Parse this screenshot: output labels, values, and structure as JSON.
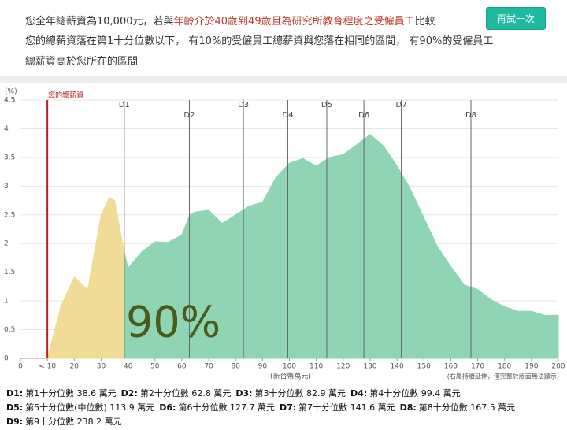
{
  "header": {
    "line1_start": "您全年總薪資為10,000元，若與",
    "line1_highlight": "年齡介於40歲到49歲且為研究所教育程度之受僱員工",
    "line1_end": "比較",
    "line2": "您的總薪資落在第1十分位數以下， 有10%的受僱員工總薪資與您落在相同的區間， 有90%的受僱員工",
    "line3": "總薪資高於您所在的區間",
    "button": "再試一次"
  },
  "chart_data": {
    "type": "area",
    "y_unit": "(%)",
    "x_label": "(新台幣萬元)",
    "note": "(右尾持續延伸，僅完整於版面無法顯示)",
    "annotation": "90%",
    "xlim": [
      0,
      200
    ],
    "xticks": [
      0,
      {
        "value": 10,
        "label": "< 10"
      },
      20,
      30,
      40,
      50,
      60,
      70,
      80,
      90,
      100,
      110,
      120,
      130,
      140,
      150,
      160,
      170,
      180,
      190,
      200
    ],
    "ylim": [
      0,
      4.5
    ],
    "yticks": [
      0,
      0.5,
      1,
      1.5,
      2,
      2.5,
      3,
      3.5,
      4,
      4.5
    ],
    "grid": true,
    "series": [
      {
        "color": "#f0dc96",
        "x": [
          10,
          15,
          20,
          25,
          30,
          33,
          35,
          38.6
        ],
        "values": [
          0,
          0.9,
          1.42,
          1.19,
          2.5,
          2.8,
          2.75,
          1.85
        ]
      },
      {
        "color": "#90d5b3",
        "x": [
          38.6,
          40,
          45,
          50,
          55,
          60,
          63,
          65,
          70,
          75,
          80,
          85,
          90,
          95,
          100,
          105,
          110,
          115,
          120,
          125,
          130,
          135,
          140,
          145,
          150,
          155,
          160,
          165,
          170,
          175,
          180,
          185,
          190,
          195,
          200
        ],
        "values": [
          1.85,
          1.57,
          1.85,
          2.03,
          2.02,
          2.15,
          2.5,
          2.55,
          2.58,
          2.35,
          2.5,
          2.65,
          2.72,
          3.15,
          3.4,
          3.48,
          3.35,
          3.5,
          3.55,
          3.72,
          3.9,
          3.7,
          3.35,
          2.95,
          2.45,
          1.95,
          1.6,
          1.28,
          1.2,
          1.02,
          0.9,
          0.82,
          0.82,
          0.75,
          0.75
        ]
      }
    ],
    "marker": {
      "label": "您的總薪資",
      "value": 10,
      "color": "#b22222"
    },
    "deciles": [
      {
        "name": "D1",
        "value": 38.6
      },
      {
        "name": "D2",
        "value": 62.8
      },
      {
        "name": "D3",
        "value": 82.9
      },
      {
        "name": "D4",
        "value": 99.4
      },
      {
        "name": "D5",
        "value": 113.9
      },
      {
        "name": "D6",
        "value": 127.7
      },
      {
        "name": "D7",
        "value": 141.6
      },
      {
        "name": "D8",
        "value": 167.5
      }
    ],
    "legend": [
      {
        "key": "D1:",
        "text": "第1十分位數 38.6 萬元"
      },
      {
        "key": "D2:",
        "text": "第2十分位數 62.8 萬元"
      },
      {
        "key": "D3:",
        "text": "第3十分位數 82.9 萬元"
      },
      {
        "key": "D4:",
        "text": "第4十分位數 99.4 萬元"
      },
      {
        "key": "D5:",
        "text": "第5十分位數(中位數) 113.9 萬元"
      },
      {
        "key": "D6:",
        "text": "第6十分位數 127.7 萬元"
      },
      {
        "key": "D7:",
        "text": "第7十分位數 141.6 萬元"
      },
      {
        "key": "D8:",
        "text": "第8十分位數 167.5 萬元"
      },
      {
        "key": "D9:",
        "text": "第9十分位數 238.2 萬元"
      }
    ]
  }
}
